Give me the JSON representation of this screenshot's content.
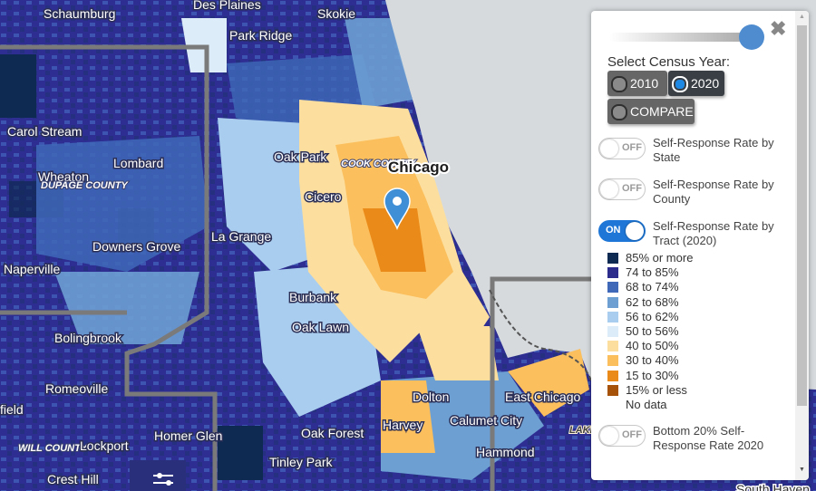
{
  "map": {
    "places": [
      {
        "name": "Schaumburg",
        "style": "normal"
      },
      {
        "name": "Des Plaines",
        "style": "normal"
      },
      {
        "name": "Skokie",
        "style": "normal"
      },
      {
        "name": "Park Ridge",
        "style": "normal"
      },
      {
        "name": "Carol Stream",
        "style": "normal"
      },
      {
        "name": "Lombard",
        "style": "normal"
      },
      {
        "name": "Wheaton",
        "style": "normal"
      },
      {
        "name": "DUPAGE COUNTY",
        "style": "county"
      },
      {
        "name": "Oak Park",
        "style": "normal"
      },
      {
        "name": "COOK COUNTY",
        "style": "county"
      },
      {
        "name": "Chicago",
        "style": "big"
      },
      {
        "name": "Cicero",
        "style": "normal"
      },
      {
        "name": "La Grange",
        "style": "normal"
      },
      {
        "name": "Downers Grove",
        "style": "normal"
      },
      {
        "name": "Naperville",
        "style": "normal"
      },
      {
        "name": "Burbank",
        "style": "normal"
      },
      {
        "name": "Oak Lawn",
        "style": "normal"
      },
      {
        "name": "Bolingbrook",
        "style": "normal"
      },
      {
        "name": "Romeoville",
        "style": "normal"
      },
      {
        "name": "Dolton",
        "style": "normal"
      },
      {
        "name": "East Chicago",
        "style": "normal"
      },
      {
        "name": "Harvey",
        "style": "normal"
      },
      {
        "name": "Calumet City",
        "style": "normal"
      },
      {
        "name": "LAKE",
        "style": "county-dark"
      },
      {
        "name": "field",
        "style": "normal"
      },
      {
        "name": "Homer Glen",
        "style": "normal"
      },
      {
        "name": "Oak Forest",
        "style": "normal"
      },
      {
        "name": "WILL COUNTY",
        "style": "county"
      },
      {
        "name": "Lockport",
        "style": "normal"
      },
      {
        "name": "Hammond",
        "style": "normal"
      },
      {
        "name": "Tinley Park",
        "style": "normal"
      },
      {
        "name": "Crest Hill",
        "style": "normal"
      },
      {
        "name": "South Haven",
        "style": "dark"
      }
    ],
    "colors": {
      "lake": "#d6dadd",
      "land_gray": "#cfd3d6",
      "county_line": "#7a7a7a",
      "pin": "#3f8fd6"
    },
    "marker_icon": "location-pin-icon",
    "filter_icon": "sliders-icon"
  },
  "panel": {
    "close_icon": "close-icon",
    "section_title": "Select Census Year:",
    "year_options": [
      {
        "label": "2010",
        "selected": false
      },
      {
        "label": "2020",
        "selected": true
      },
      {
        "label": "COMPARE",
        "selected": false
      }
    ],
    "layers": [
      {
        "label": "Self-Response Rate by State",
        "state": "OFF",
        "on": false
      },
      {
        "label": "Self-Response Rate by County",
        "state": "OFF",
        "on": false
      },
      {
        "label": "Self-Response Rate by Tract (2020)",
        "state": "ON",
        "on": true
      },
      {
        "label": "Bottom 20% Self-Response Rate 2020",
        "state": "OFF",
        "on": false
      }
    ],
    "legend": [
      {
        "label": "85% or more",
        "color": "#0f2a52"
      },
      {
        "label": "74 to 85%",
        "color": "#2c2c8c"
      },
      {
        "label": "68 to 74%",
        "color": "#3f69b8"
      },
      {
        "label": "62 to 68%",
        "color": "#6d9fd3"
      },
      {
        "label": "56 to 62%",
        "color": "#a9cdee"
      },
      {
        "label": "50 to 56%",
        "color": "#dcecf8"
      },
      {
        "label": "40 to 50%",
        "color": "#fcdf9f"
      },
      {
        "label": "30 to 40%",
        "color": "#fbbf5d"
      },
      {
        "label": "15 to 30%",
        "color": "#ea8a18"
      },
      {
        "label": "15% or less",
        "color": "#a65208"
      },
      {
        "label": "No data",
        "color": null
      }
    ]
  }
}
